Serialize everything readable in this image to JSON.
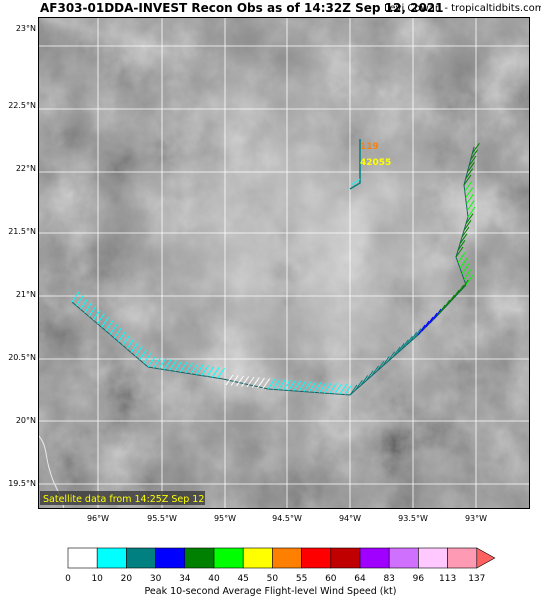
{
  "header": {
    "title": "AF303-01DDA-INVEST Recon Obs as of 14:32Z Sep 12, 2021",
    "credit": "Levi Cowan - tropicaltidbits.com"
  },
  "map": {
    "lat_labels": [
      "23°N",
      "22.5°N",
      "22°N",
      "21.5°N",
      "21°N",
      "20.5°N",
      "20°N",
      "19.5°N"
    ],
    "lon_labels": [
      "96°W",
      "95.5°W",
      "95°W",
      "94.5°W",
      "94°W",
      "93.5°W",
      "93°W"
    ],
    "satellite_note": "Satellite data from 14:25Z Sep 12",
    "obs_wind": "119",
    "obs_altitude": "42055"
  },
  "colorbar": {
    "title": "Peak 10-second Average Flight-level Wind Speed (kt)",
    "ticks": [
      "0",
      "10",
      "20",
      "30",
      "34",
      "40",
      "45",
      "50",
      "55",
      "60",
      "64",
      "83",
      "96",
      "113",
      "137"
    ],
    "colors": [
      "#ffffff",
      "#00ffff",
      "#008080",
      "#0000ff",
      "#008000",
      "#00ff00",
      "#ffff00",
      "#ff8000",
      "#ff0000",
      "#c00000",
      "#a000ff",
      "#d070ff",
      "#ffc8ff",
      "#ff9ab4"
    ]
  }
}
